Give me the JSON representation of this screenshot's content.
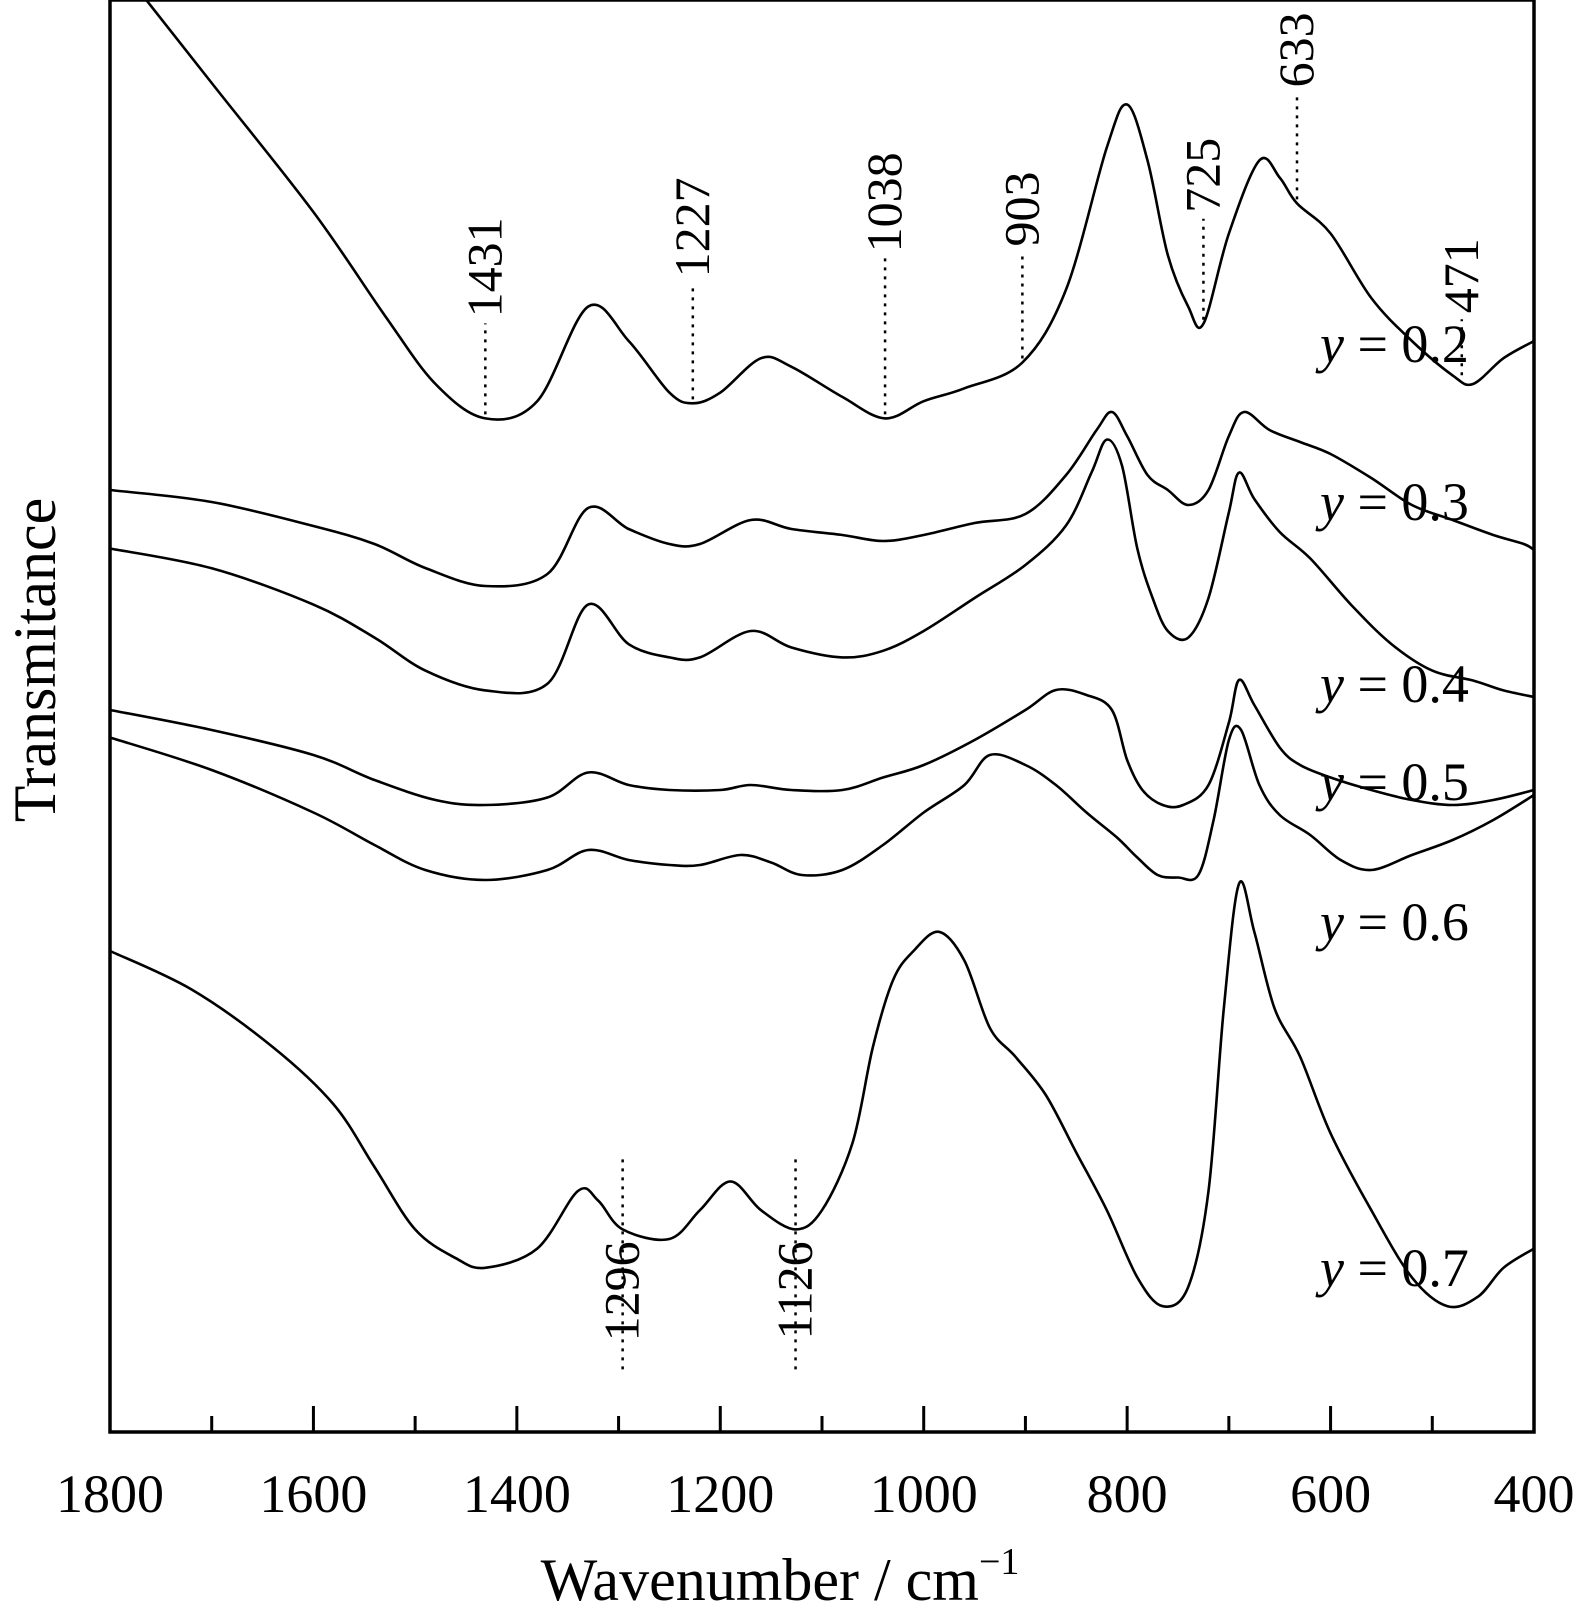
{
  "chart_data": {
    "type": "line",
    "xlabel": "Wavenumber / cm",
    "xlabel_sup": "−1",
    "ylabel": "Transmitance",
    "xlim": [
      1800,
      400
    ],
    "x_reversed": true,
    "x_ticks_major": [
      "1800",
      "1600",
      "1400",
      "1200",
      "1000",
      "800",
      "600",
      "400"
    ],
    "x_ticks_minor_step": 100,
    "y_ticks": "none",
    "grid": false,
    "legend": "none",
    "line_color": "#000000",
    "series_label_var": "y",
    "series": [
      {
        "label": " = 0.2",
        "points": [
          [
            1800,
            1.2
          ],
          [
            1700,
            0.9
          ],
          [
            1600,
            0.6
          ],
          [
            1530,
            0.36
          ],
          [
            1480,
            0.2
          ],
          [
            1431,
            0.12
          ],
          [
            1380,
            0.16
          ],
          [
            1330,
            0.38
          ],
          [
            1290,
            0.3
          ],
          [
            1250,
            0.18
          ],
          [
            1227,
            0.155
          ],
          [
            1200,
            0.18
          ],
          [
            1160,
            0.26
          ],
          [
            1130,
            0.24
          ],
          [
            1080,
            0.17
          ],
          [
            1038,
            0.12
          ],
          [
            1000,
            0.16
          ],
          [
            960,
            0.19
          ],
          [
            903,
            0.25
          ],
          [
            860,
            0.42
          ],
          [
            820,
            0.75
          ],
          [
            800,
            0.85
          ],
          [
            780,
            0.72
          ],
          [
            760,
            0.5
          ],
          [
            740,
            0.38
          ],
          [
            725,
            0.34
          ],
          [
            700,
            0.55
          ],
          [
            670,
            0.72
          ],
          [
            650,
            0.68
          ],
          [
            633,
            0.62
          ],
          [
            600,
            0.55
          ],
          [
            560,
            0.4
          ],
          [
            520,
            0.3
          ],
          [
            480,
            0.22
          ],
          [
            460,
            0.2
          ],
          [
            430,
            0.26
          ],
          [
            400,
            0.3
          ]
        ]
      },
      {
        "label": " = 0.3",
        "points": [
          [
            1800,
            0.4
          ],
          [
            1700,
            0.36
          ],
          [
            1600,
            0.28
          ],
          [
            1540,
            0.22
          ],
          [
            1490,
            0.14
          ],
          [
            1431,
            0.08
          ],
          [
            1370,
            0.12
          ],
          [
            1330,
            0.34
          ],
          [
            1290,
            0.27
          ],
          [
            1250,
            0.22
          ],
          [
            1220,
            0.22
          ],
          [
            1170,
            0.3
          ],
          [
            1130,
            0.27
          ],
          [
            1080,
            0.25
          ],
          [
            1040,
            0.23
          ],
          [
            1000,
            0.25
          ],
          [
            950,
            0.29
          ],
          [
            900,
            0.32
          ],
          [
            860,
            0.45
          ],
          [
            830,
            0.6
          ],
          [
            815,
            0.66
          ],
          [
            800,
            0.58
          ],
          [
            780,
            0.45
          ],
          [
            760,
            0.4
          ],
          [
            740,
            0.35
          ],
          [
            720,
            0.4
          ],
          [
            700,
            0.58
          ],
          [
            685,
            0.66
          ],
          [
            660,
            0.6
          ],
          [
            630,
            0.56
          ],
          [
            600,
            0.52
          ],
          [
            560,
            0.44
          ],
          [
            520,
            0.35
          ],
          [
            480,
            0.3
          ],
          [
            440,
            0.25
          ],
          [
            410,
            0.22
          ],
          [
            400,
            0.2
          ]
        ]
      },
      {
        "label": " = 0.4",
        "points": [
          [
            1800,
            0.55
          ],
          [
            1700,
            0.49
          ],
          [
            1600,
            0.38
          ],
          [
            1540,
            0.28
          ],
          [
            1490,
            0.18
          ],
          [
            1431,
            0.12
          ],
          [
            1370,
            0.14
          ],
          [
            1330,
            0.38
          ],
          [
            1290,
            0.26
          ],
          [
            1250,
            0.22
          ],
          [
            1220,
            0.22
          ],
          [
            1170,
            0.3
          ],
          [
            1130,
            0.25
          ],
          [
            1080,
            0.22
          ],
          [
            1040,
            0.24
          ],
          [
            1000,
            0.3
          ],
          [
            950,
            0.4
          ],
          [
            900,
            0.5
          ],
          [
            860,
            0.62
          ],
          [
            835,
            0.78
          ],
          [
            820,
            0.88
          ],
          [
            805,
            0.8
          ],
          [
            790,
            0.55
          ],
          [
            775,
            0.4
          ],
          [
            760,
            0.3
          ],
          [
            740,
            0.28
          ],
          [
            720,
            0.4
          ],
          [
            700,
            0.66
          ],
          [
            690,
            0.78
          ],
          [
            675,
            0.7
          ],
          [
            650,
            0.6
          ],
          [
            620,
            0.52
          ],
          [
            580,
            0.38
          ],
          [
            540,
            0.26
          ],
          [
            500,
            0.18
          ],
          [
            460,
            0.15
          ],
          [
            430,
            0.12
          ],
          [
            400,
            0.1
          ]
        ]
      },
      {
        "label": " = 0.5",
        "points": [
          [
            1800,
            0.6
          ],
          [
            1700,
            0.52
          ],
          [
            1600,
            0.42
          ],
          [
            1540,
            0.32
          ],
          [
            1480,
            0.24
          ],
          [
            1431,
            0.22
          ],
          [
            1370,
            0.25
          ],
          [
            1330,
            0.35
          ],
          [
            1290,
            0.3
          ],
          [
            1250,
            0.28
          ],
          [
            1200,
            0.28
          ],
          [
            1170,
            0.3
          ],
          [
            1130,
            0.28
          ],
          [
            1080,
            0.28
          ],
          [
            1040,
            0.33
          ],
          [
            1000,
            0.38
          ],
          [
            950,
            0.48
          ],
          [
            900,
            0.6
          ],
          [
            870,
            0.68
          ],
          [
            840,
            0.66
          ],
          [
            815,
            0.6
          ],
          [
            800,
            0.4
          ],
          [
            785,
            0.28
          ],
          [
            765,
            0.22
          ],
          [
            745,
            0.22
          ],
          [
            720,
            0.3
          ],
          [
            700,
            0.55
          ],
          [
            690,
            0.72
          ],
          [
            675,
            0.62
          ],
          [
            650,
            0.45
          ],
          [
            630,
            0.38
          ],
          [
            600,
            0.33
          ],
          [
            560,
            0.28
          ],
          [
            520,
            0.24
          ],
          [
            480,
            0.22
          ],
          [
            440,
            0.24
          ],
          [
            400,
            0.28
          ]
        ]
      },
      {
        "label": " = 0.6",
        "points": [
          [
            1800,
            0.85
          ],
          [
            1700,
            0.72
          ],
          [
            1600,
            0.55
          ],
          [
            1540,
            0.42
          ],
          [
            1490,
            0.32
          ],
          [
            1431,
            0.28
          ],
          [
            1370,
            0.32
          ],
          [
            1330,
            0.4
          ],
          [
            1290,
            0.36
          ],
          [
            1250,
            0.34
          ],
          [
            1220,
            0.34
          ],
          [
            1180,
            0.38
          ],
          [
            1150,
            0.35
          ],
          [
            1120,
            0.3
          ],
          [
            1080,
            0.32
          ],
          [
            1040,
            0.42
          ],
          [
            1000,
            0.55
          ],
          [
            960,
            0.66
          ],
          [
            935,
            0.78
          ],
          [
            900,
            0.74
          ],
          [
            870,
            0.66
          ],
          [
            840,
            0.55
          ],
          [
            810,
            0.45
          ],
          [
            790,
            0.37
          ],
          [
            770,
            0.3
          ],
          [
            750,
            0.29
          ],
          [
            730,
            0.3
          ],
          [
            715,
            0.52
          ],
          [
            700,
            0.84
          ],
          [
            688,
            0.88
          ],
          [
            670,
            0.66
          ],
          [
            650,
            0.54
          ],
          [
            620,
            0.46
          ],
          [
            590,
            0.36
          ],
          [
            560,
            0.32
          ],
          [
            520,
            0.38
          ],
          [
            480,
            0.44
          ],
          [
            440,
            0.52
          ],
          [
            400,
            0.62
          ]
        ]
      },
      {
        "label": " = 0.7",
        "points": [
          [
            1800,
            0.8
          ],
          [
            1720,
            0.72
          ],
          [
            1640,
            0.6
          ],
          [
            1580,
            0.48
          ],
          [
            1540,
            0.35
          ],
          [
            1500,
            0.22
          ],
          [
            1460,
            0.16
          ],
          [
            1431,
            0.14
          ],
          [
            1380,
            0.18
          ],
          [
            1340,
            0.3
          ],
          [
            1320,
            0.28
          ],
          [
            1296,
            0.22
          ],
          [
            1250,
            0.2
          ],
          [
            1220,
            0.26
          ],
          [
            1190,
            0.32
          ],
          [
            1160,
            0.26
          ],
          [
            1126,
            0.22
          ],
          [
            1100,
            0.26
          ],
          [
            1070,
            0.4
          ],
          [
            1050,
            0.6
          ],
          [
            1030,
            0.74
          ],
          [
            1010,
            0.8
          ],
          [
            985,
            0.84
          ],
          [
            960,
            0.78
          ],
          [
            935,
            0.64
          ],
          [
            910,
            0.58
          ],
          [
            880,
            0.5
          ],
          [
            850,
            0.38
          ],
          [
            820,
            0.26
          ],
          [
            790,
            0.12
          ],
          [
            765,
            0.06
          ],
          [
            740,
            0.1
          ],
          [
            720,
            0.3
          ],
          [
            705,
            0.68
          ],
          [
            690,
            0.94
          ],
          [
            675,
            0.84
          ],
          [
            655,
            0.68
          ],
          [
            630,
            0.58
          ],
          [
            600,
            0.42
          ],
          [
            560,
            0.26
          ],
          [
            520,
            0.12
          ],
          [
            485,
            0.06
          ],
          [
            455,
            0.08
          ],
          [
            430,
            0.14
          ],
          [
            400,
            0.18
          ]
        ]
      }
    ],
    "peak_labels": [
      "1431",
      "1227",
      "1038",
      "903",
      "725",
      "633",
      "471",
      "1296",
      "1126"
    ]
  }
}
